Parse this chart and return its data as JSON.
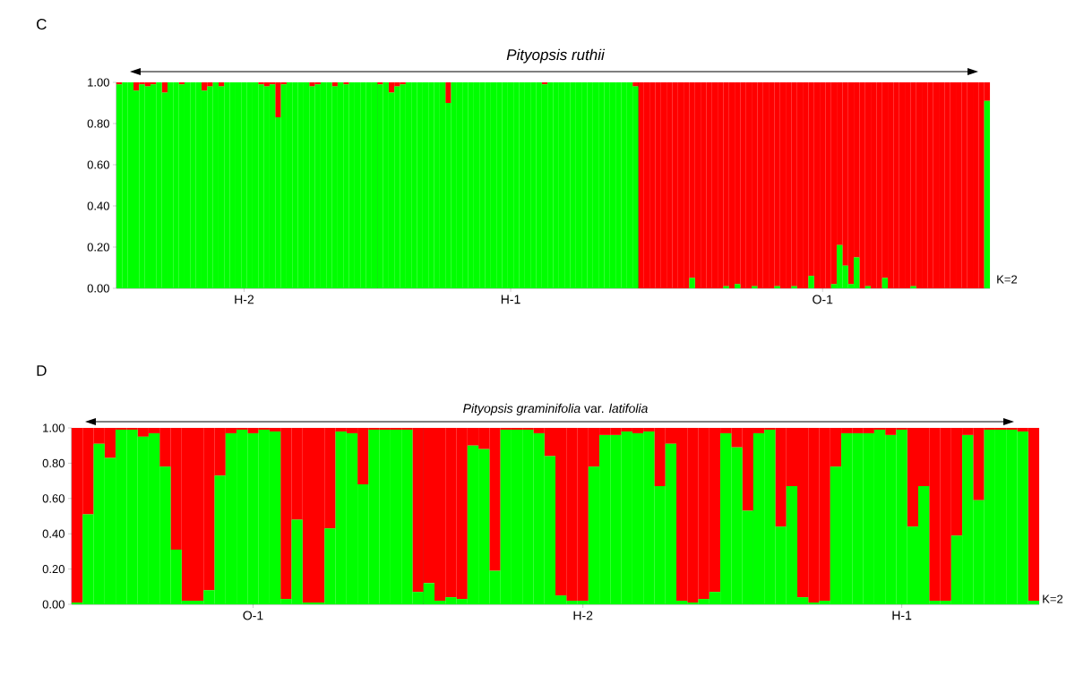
{
  "chart_data": [
    {
      "type": "bar",
      "stacked": true,
      "title": "Pityopsis ruthii",
      "categories": [
        null,
        null,
        null,
        null,
        null,
        null,
        null,
        null,
        null,
        null,
        null,
        null,
        null,
        null,
        null,
        null,
        null,
        null,
        null,
        null,
        null,
        null,
        "H-2",
        null,
        null,
        null,
        null,
        null,
        null,
        null,
        null,
        null,
        null,
        null,
        null,
        null,
        null,
        null,
        null,
        null,
        null,
        null,
        null,
        null,
        null,
        null,
        null,
        null,
        null,
        null,
        null,
        null,
        null,
        null,
        null,
        null,
        null,
        null,
        null,
        null,
        null,
        null,
        null,
        null,
        null,
        null,
        null,
        null,
        null,
        "H-1",
        null,
        null,
        null,
        null,
        null,
        null,
        null,
        null,
        null,
        null,
        null,
        null,
        null,
        null,
        null,
        null,
        null,
        null,
        null,
        null,
        null,
        null,
        null,
        null,
        null,
        null,
        null,
        null,
        null,
        null,
        null,
        null,
        null,
        null,
        null,
        null,
        null,
        null,
        null,
        null,
        null,
        null,
        null,
        null,
        null,
        null,
        null,
        null,
        null,
        null,
        null,
        null,
        null,
        null,
        "O-1",
        null,
        null,
        null,
        null,
        null,
        null,
        null,
        null,
        null,
        null,
        null,
        null,
        null,
        null,
        null,
        null,
        null,
        null,
        null,
        null,
        null,
        null,
        null,
        null,
        null,
        null,
        null,
        null,
        null
      ],
      "series": [
        {
          "color": "#00ff00",
          "values": [
            0.99,
            1,
            1,
            0.96,
            0.99,
            0.98,
            0.99,
            1,
            0.95,
            1,
            1,
            0.99,
            1,
            1,
            1,
            0.96,
            0.98,
            1,
            0.98,
            1,
            1,
            1,
            1,
            1,
            1,
            0.99,
            0.98,
            0.99,
            0.83,
            0.99,
            1,
            1,
            1,
            1,
            0.98,
            0.99,
            1,
            1,
            0.98,
            1,
            0.99,
            1,
            1,
            1,
            1,
            1,
            0.99,
            1,
            0.95,
            0.98,
            0.99,
            1,
            1,
            1,
            1,
            1,
            1,
            1,
            0.9,
            1,
            1,
            1,
            1,
            1,
            1,
            1,
            1,
            1,
            1,
            1,
            1,
            1,
            1,
            1,
            1,
            0.99,
            1,
            1,
            1,
            1,
            1,
            1,
            1,
            1,
            1,
            1,
            1,
            1,
            1,
            1,
            1,
            0.98,
            0,
            0,
            0,
            0,
            0,
            0,
            0,
            0,
            0,
            0.05,
            0,
            0,
            0,
            0,
            0,
            0.01,
            0,
            0.02,
            0,
            0,
            0.01,
            0,
            0,
            0,
            0.01,
            0,
            0,
            0.01,
            0,
            0,
            0.06,
            0,
            0,
            0,
            0.02,
            0.21,
            0.11,
            0.02,
            0.15,
            0,
            0.01,
            0,
            0,
            0.05,
            0,
            0,
            0,
            0,
            0.01,
            0,
            0,
            0,
            0,
            0,
            0,
            0,
            0,
            0,
            0,
            0,
            0,
            0.91
          ]
        },
        {
          "color": "#ff0000",
          "values": [
            0.01,
            0,
            0,
            0.04,
            0.01,
            0.02,
            0.01,
            0,
            0.05,
            0,
            0,
            0.01,
            0,
            0,
            0,
            0.04,
            0.02,
            0,
            0.02,
            0,
            0,
            0,
            0,
            0,
            0,
            0.01,
            0.02,
            0.01,
            0.17,
            0.01,
            0,
            0,
            0,
            0,
            0.02,
            0.01,
            0,
            0,
            0.02,
            0,
            0.01,
            0,
            0,
            0,
            0,
            0,
            0.01,
            0,
            0.05,
            0.02,
            0.01,
            0,
            0,
            0,
            0,
            0,
            0,
            0,
            0.1,
            0,
            0,
            0,
            0,
            0,
            0,
            0,
            0,
            0,
            0,
            0,
            0,
            0,
            0,
            0,
            0,
            0.01,
            0,
            0,
            0,
            0,
            0,
            0,
            0,
            0,
            0,
            0,
            0,
            0,
            0,
            0,
            0,
            0.02,
            1,
            1,
            1,
            1,
            1,
            1,
            1,
            1,
            1,
            0.95,
            1,
            1,
            1,
            1,
            1,
            0.99,
            1,
            0.98,
            1,
            1,
            0.99,
            1,
            1,
            1,
            0.99,
            1,
            1,
            0.99,
            1,
            1,
            0.94,
            1,
            1,
            1,
            0.98,
            0.79,
            0.89,
            0.98,
            0.85,
            1,
            0.99,
            1,
            1,
            0.95,
            1,
            1,
            1,
            1,
            0.99,
            1,
            1,
            1,
            1,
            1,
            1,
            1,
            1,
            1,
            1,
            1,
            1,
            0.09
          ]
        }
      ],
      "ylim": [
        0,
        1
      ],
      "yticks": [
        {
          "value": 0,
          "label": "0.00"
        },
        {
          "value": 0.2,
          "label": "0.20"
        },
        {
          "value": 0.4,
          "label": "0.40"
        },
        {
          "value": 0.6,
          "label": "0.60"
        },
        {
          "value": 0.8,
          "label": "0.80"
        },
        {
          "value": 1,
          "label": "1.00"
        }
      ],
      "annotations": [
        "C",
        "K=2"
      ]
    },
    {
      "type": "bar",
      "stacked": true,
      "title": "*Pityopsis graminifolia* var. *latifolia*",
      "categories": [
        null,
        null,
        null,
        null,
        null,
        null,
        null,
        null,
        null,
        null,
        null,
        null,
        null,
        null,
        null,
        null,
        "O-1",
        null,
        null,
        null,
        null,
        null,
        null,
        null,
        null,
        null,
        null,
        null,
        null,
        null,
        null,
        null,
        null,
        null,
        null,
        null,
        null,
        null,
        null,
        null,
        null,
        null,
        null,
        null,
        null,
        null,
        "H-2",
        null,
        null,
        null,
        null,
        null,
        null,
        null,
        null,
        null,
        null,
        null,
        null,
        null,
        null,
        null,
        null,
        null,
        null,
        null,
        null,
        null,
        null,
        null,
        null,
        null,
        null,
        null,
        null,
        "H-1",
        null,
        null,
        null,
        null,
        null,
        null,
        null,
        null,
        null,
        null,
        null,
        null
      ],
      "series": [
        {
          "color": "#00ff00",
          "values": [
            0.01,
            0.51,
            0.91,
            0.83,
            0.99,
            0.99,
            0.95,
            0.97,
            0.78,
            0.31,
            0.02,
            0.02,
            0.08,
            0.73,
            0.97,
            0.99,
            0.97,
            0.99,
            0.98,
            0.03,
            0.48,
            0.01,
            0.01,
            0.43,
            0.98,
            0.97,
            0.68,
            0.99,
            0.99,
            0.99,
            0.99,
            0.07,
            0.12,
            0.02,
            0.04,
            0.03,
            0.9,
            0.88,
            0.19,
            0.99,
            0.99,
            0.99,
            0.97,
            0.84,
            0.05,
            0.02,
            0.02,
            0.78,
            0.96,
            0.96,
            0.98,
            0.97,
            0.98,
            0.67,
            0.91,
            0.02,
            0.01,
            0.03,
            0.07,
            0.97,
            0.89,
            0.53,
            0.97,
            0.99,
            0.44,
            0.67,
            0.04,
            0.01,
            0.02,
            0.78,
            0.97,
            0.97,
            0.97,
            0.99,
            0.96,
            0.99,
            0.44,
            0.67,
            0.02,
            0.02,
            0.39,
            0.96,
            0.59,
            0.99,
            0.99,
            0.99,
            0.98,
            0.02
          ]
        },
        {
          "color": "#ff0000",
          "values": [
            0.99,
            0.49,
            0.09,
            0.17,
            0.01,
            0.01,
            0.05,
            0.03,
            0.22,
            0.69,
            0.98,
            0.98,
            0.92,
            0.27,
            0.03,
            0.01,
            0.03,
            0.01,
            0.02,
            0.97,
            0.52,
            0.99,
            0.99,
            0.57,
            0.02,
            0.03,
            0.32,
            0.01,
            0.01,
            0.01,
            0.01,
            0.93,
            0.88,
            0.98,
            0.96,
            0.97,
            0.1,
            0.12,
            0.81,
            0.01,
            0.01,
            0.01,
            0.03,
            0.16,
            0.95,
            0.98,
            0.98,
            0.22,
            0.04,
            0.04,
            0.02,
            0.03,
            0.02,
            0.33,
            0.09,
            0.98,
            0.99,
            0.97,
            0.93,
            0.03,
            0.11,
            0.47,
            0.03,
            0.01,
            0.56,
            0.33,
            0.96,
            0.99,
            0.98,
            0.22,
            0.03,
            0.03,
            0.03,
            0.01,
            0.04,
            0.01,
            0.56,
            0.33,
            0.98,
            0.98,
            0.61,
            0.04,
            0.41,
            0.01,
            0.01,
            0.01,
            0.02,
            0.98
          ]
        }
      ],
      "ylim": [
        0,
        1
      ],
      "yticks": [
        {
          "value": 0,
          "label": "0.00"
        },
        {
          "value": 0.2,
          "label": "0.20"
        },
        {
          "value": 0.4,
          "label": "0.40"
        },
        {
          "value": 0.6,
          "label": "0.60"
        },
        {
          "value": 0.8,
          "label": "0.80"
        },
        {
          "value": 1,
          "label": "1.00"
        }
      ],
      "annotations": [
        "D",
        "K=2"
      ]
    }
  ]
}
